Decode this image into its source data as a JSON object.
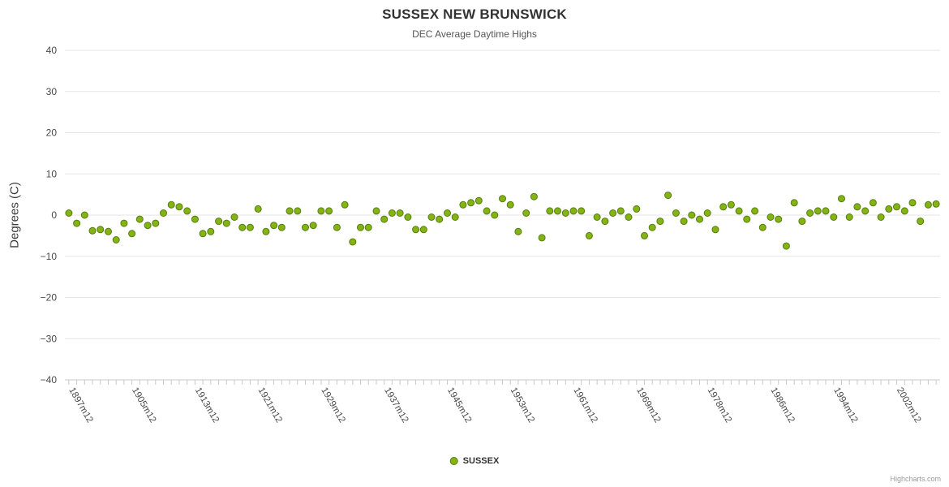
{
  "header": {
    "title": "SUSSEX NEW BRUNSWICK",
    "subtitle": "DEC Average Daytime Highs"
  },
  "legend": {
    "label": "SUSSEX"
  },
  "credits": {
    "label": "Highcharts.com"
  },
  "colors": {
    "point_fill": "#84b414",
    "point_stroke": "#567d0e",
    "gridline": "#e6e6e6",
    "axis_line": "#c9c9c9",
    "tick": "#c9c9c9",
    "y_tick_label": "#4a4a4a",
    "x_tick_label": "#4a4a4a"
  },
  "chart_data": {
    "type": "scatter",
    "title": "SUSSEX NEW BRUNSWICK",
    "subtitle": "DEC Average Daytime Highs",
    "xlabel": "",
    "ylabel": "Degrees (C)",
    "ylim": [
      -40,
      40
    ],
    "y_ticks": [
      40,
      30,
      20,
      10,
      0,
      -10,
      -20,
      -30,
      -40
    ],
    "grid": "horizontal",
    "legend_position": "bottom-center",
    "series_name": "SUSSEX",
    "x_ticks": [
      {
        "label": "1897m12",
        "index": 0
      },
      {
        "label": "1905m12",
        "index": 8
      },
      {
        "label": "1913m12",
        "index": 16
      },
      {
        "label": "1921m12",
        "index": 24
      },
      {
        "label": "1929m12",
        "index": 32
      },
      {
        "label": "1937m12",
        "index": 40
      },
      {
        "label": "1945m12",
        "index": 48
      },
      {
        "label": "1953m12",
        "index": 56
      },
      {
        "label": "1961m12",
        "index": 64
      },
      {
        "label": "1969m12",
        "index": 72
      },
      {
        "label": "1978m12",
        "index": 81
      },
      {
        "label": "1986m12",
        "index": 89
      },
      {
        "label": "1994m12",
        "index": 97
      },
      {
        "label": "2002m12",
        "index": 105
      }
    ],
    "values": [
      0.5,
      -2,
      0,
      -3.8,
      -3.5,
      -4,
      -6,
      -2,
      -4.5,
      -1,
      -2.5,
      -2,
      0.5,
      2.5,
      2,
      1,
      -1,
      -4.5,
      -4,
      -1.5,
      -2,
      -0.5,
      -3,
      -3,
      1.5,
      -4,
      -2.5,
      -3,
      1,
      1,
      -3,
      -2.5,
      1,
      1,
      -3,
      2.5,
      -6.5,
      -3,
      -3,
      1,
      -1,
      0.5,
      0.5,
      -0.5,
      -3.5,
      -3.5,
      -0.5,
      -1,
      0.5,
      -0.5,
      2.5,
      3,
      3.5,
      1,
      0,
      4,
      2.5,
      -4,
      0.5,
      4.5,
      -5.5,
      1,
      1,
      0.5,
      1,
      1,
      -5,
      -0.5,
      -1.5,
      0.5,
      1,
      -0.5,
      1.5,
      -5,
      -3,
      -1.5,
      4.8,
      0.5,
      -1.5,
      0,
      -1,
      0.5,
      -3.5,
      2,
      2.5,
      1,
      -1,
      1,
      -3,
      -0.5,
      -1,
      -7.5,
      3,
      -1.5,
      0.5,
      1,
      1,
      -0.5,
      4,
      -0.5,
      2,
      1,
      3,
      -0.5,
      1.5,
      2,
      1,
      3,
      -1.5,
      2.5,
      2.7
    ]
  }
}
